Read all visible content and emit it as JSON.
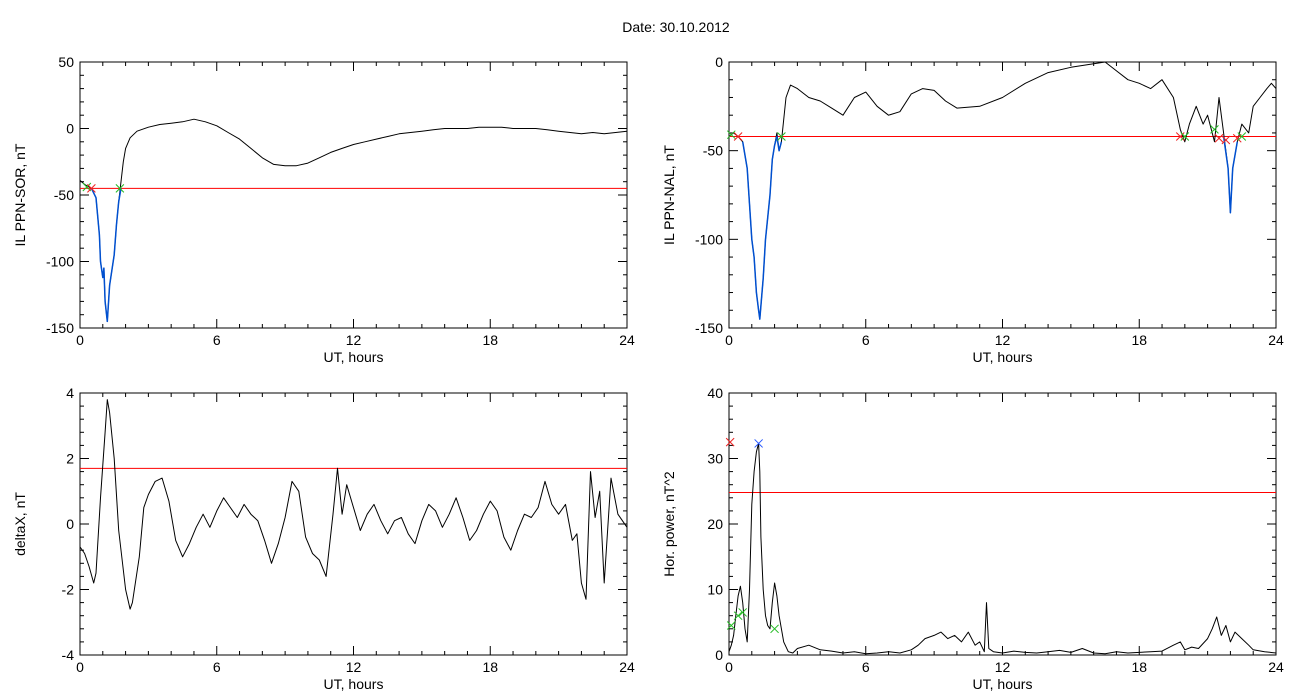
{
  "header": {
    "title": "Date:  30.10.2012"
  },
  "colors": {
    "signal": "#000000",
    "threshold": "#ff0000",
    "event": "#0050d0",
    "marker_start": "#22bb22",
    "marker_end": "#ee2222",
    "marker_peak": "#2255ff"
  },
  "chart_data": [
    {
      "id": "sor",
      "type": "line",
      "title": "",
      "xlabel": "UT, hours",
      "ylabel": "IL PPN-SOR, nT",
      "xlim": [
        0,
        24
      ],
      "ylim": [
        -150,
        50
      ],
      "xticks": [
        0,
        6,
        12,
        18,
        24
      ],
      "yticks": [
        -150,
        -100,
        -50,
        0,
        50
      ],
      "grid": false,
      "threshold": -45,
      "series": [
        {
          "role": "signal",
          "x": [
            0,
            0.2,
            0.5,
            0.7,
            0.85,
            0.9,
            1.0,
            1.05,
            1.1,
            1.2,
            1.3,
            1.5,
            1.6,
            1.7,
            1.8,
            1.9,
            2.0,
            2.2,
            2.5,
            3.0,
            3.5,
            4.0,
            4.5,
            5.0,
            5.5,
            6.0,
            6.5,
            7.0,
            7.5,
            8.0,
            8.5,
            9.0,
            9.5,
            10.0,
            10.5,
            11.0,
            11.5,
            12.0,
            12.5,
            13.0,
            13.5,
            14.0,
            14.5,
            15.0,
            15.5,
            16.0,
            16.5,
            17.0,
            17.5,
            18.0,
            18.5,
            19.0,
            19.5,
            20.0,
            20.5,
            21.0,
            21.5,
            22.0,
            22.5,
            23.0,
            23.5,
            24.0
          ],
          "y": [
            -39,
            -42,
            -45,
            -52,
            -80,
            -100,
            -112,
            -105,
            -130,
            -145,
            -118,
            -95,
            -72,
            -55,
            -40,
            -25,
            -15,
            -7,
            -2,
            1,
            3,
            4,
            5,
            7,
            5,
            2,
            -3,
            -8,
            -15,
            -22,
            -27,
            -28,
            -28,
            -26,
            -22,
            -18,
            -15,
            -12,
            -10,
            -8,
            -6,
            -4,
            -3,
            -2,
            -1,
            0,
            0,
            0,
            1,
            1,
            1,
            0,
            0,
            0,
            -1,
            -2,
            -3,
            -4,
            -3,
            -4,
            -3,
            -2
          ]
        },
        {
          "role": "event",
          "x": [
            0.5,
            0.7,
            0.85,
            0.9,
            1.0,
            1.05,
            1.1,
            1.2,
            1.3,
            1.5,
            1.6,
            1.7,
            1.8
          ],
          "y": [
            -45,
            -52,
            -80,
            -100,
            -112,
            -105,
            -130,
            -145,
            -118,
            -95,
            -72,
            -55,
            -45
          ]
        }
      ],
      "markers": [
        {
          "x": 0.3,
          "y": -44,
          "kind": "start"
        },
        {
          "x": 0.5,
          "y": -45,
          "kind": "end"
        },
        {
          "x": 1.75,
          "y": -45,
          "kind": "start"
        }
      ]
    },
    {
      "id": "nal",
      "type": "line",
      "title": "",
      "xlabel": "UT, hours",
      "ylabel": "IL PPN-NAL, nT",
      "xlim": [
        0,
        24
      ],
      "ylim": [
        -150,
        0
      ],
      "xticks": [
        0,
        6,
        12,
        18,
        24
      ],
      "yticks": [
        -150,
        -100,
        -50,
        0
      ],
      "grid": false,
      "threshold": -42,
      "series": [
        {
          "role": "signal",
          "x": [
            0,
            0.2,
            0.4,
            0.6,
            0.8,
            0.9,
            1.0,
            1.1,
            1.2,
            1.3,
            1.35,
            1.5,
            1.6,
            1.8,
            1.9,
            2.0,
            2.1,
            2.2,
            2.3,
            2.5,
            2.7,
            3.0,
            3.5,
            4.0,
            4.5,
            5.0,
            5.5,
            6.0,
            6.5,
            7.0,
            7.5,
            8.0,
            8.5,
            9.0,
            9.5,
            10.0,
            11.0,
            12.0,
            13.0,
            14.0,
            15.0,
            16.0,
            16.5,
            17.0,
            17.5,
            18.0,
            18.5,
            19.0,
            19.5,
            19.8,
            20.0,
            20.2,
            20.5,
            20.8,
            21.0,
            21.3,
            21.5,
            21.7,
            21.9,
            22.0,
            22.1,
            22.3,
            22.5,
            22.8,
            23.0,
            23.3,
            23.6,
            23.8,
            24.0
          ],
          "y": [
            -42,
            -40,
            -42,
            -45,
            -60,
            -80,
            -100,
            -110,
            -130,
            -140,
            -145,
            -122,
            -100,
            -75,
            -55,
            -47,
            -40,
            -50,
            -45,
            -20,
            -13,
            -15,
            -20,
            -22,
            -26,
            -30,
            -20,
            -17,
            -25,
            -30,
            -28,
            -18,
            -15,
            -16,
            -22,
            -26,
            -25,
            -20,
            -12,
            -6,
            -3,
            -1,
            0,
            -5,
            -10,
            -12,
            -15,
            -10,
            -20,
            -38,
            -45,
            -35,
            -25,
            -35,
            -30,
            -45,
            -20,
            -40,
            -60,
            -85,
            -60,
            -45,
            -35,
            -40,
            -25,
            -20,
            -15,
            -12,
            -15
          ]
        },
        {
          "role": "event",
          "x": [
            0.6,
            0.8,
            0.9,
            1.0,
            1.1,
            1.2,
            1.3,
            1.35,
            1.5,
            1.6,
            1.8,
            1.9,
            2.0,
            2.1,
            2.2,
            2.3
          ],
          "y": [
            -45,
            -60,
            -80,
            -100,
            -110,
            -130,
            -140,
            -145,
            -122,
            -100,
            -75,
            -55,
            -47,
            -42,
            -50,
            -45
          ]
        },
        {
          "role": "event",
          "x": [
            21.7,
            21.9,
            22.0,
            22.1,
            22.3
          ],
          "y": [
            -42,
            -60,
            -85,
            -60,
            -45
          ]
        }
      ],
      "markers": [
        {
          "x": 0.1,
          "y": -41,
          "kind": "start"
        },
        {
          "x": 0.4,
          "y": -42,
          "kind": "end"
        },
        {
          "x": 2.3,
          "y": -42,
          "kind": "start"
        },
        {
          "x": 19.8,
          "y": -42,
          "kind": "end"
        },
        {
          "x": 20.0,
          "y": -42,
          "kind": "start"
        },
        {
          "x": 21.3,
          "y": -38,
          "kind": "start"
        },
        {
          "x": 21.5,
          "y": -43,
          "kind": "end"
        },
        {
          "x": 21.8,
          "y": -44,
          "kind": "end"
        },
        {
          "x": 22.3,
          "y": -43,
          "kind": "end"
        },
        {
          "x": 22.5,
          "y": -42,
          "kind": "start"
        }
      ]
    },
    {
      "id": "deltax",
      "type": "line",
      "title": "",
      "xlabel": "UT, hours",
      "ylabel": "deltaX, nT",
      "xlim": [
        0,
        24
      ],
      "ylim": [
        -4,
        4
      ],
      "xticks": [
        0,
        6,
        12,
        18,
        24
      ],
      "yticks": [
        -4,
        -2,
        0,
        2,
        4
      ],
      "grid": false,
      "threshold": 1.7,
      "series": [
        {
          "role": "signal",
          "x": [
            0,
            0.2,
            0.4,
            0.6,
            0.7,
            0.9,
            1.1,
            1.2,
            1.3,
            1.5,
            1.7,
            2.0,
            2.2,
            2.3,
            2.6,
            2.8,
            3.0,
            3.3,
            3.6,
            3.9,
            4.2,
            4.5,
            4.8,
            5.1,
            5.4,
            5.7,
            6.0,
            6.3,
            6.6,
            6.9,
            7.2,
            7.5,
            7.8,
            8.1,
            8.4,
            8.7,
            9.0,
            9.3,
            9.6,
            9.9,
            10.2,
            10.5,
            10.8,
            11.1,
            11.3,
            11.5,
            11.7,
            12.0,
            12.3,
            12.6,
            12.9,
            13.2,
            13.5,
            13.8,
            14.1,
            14.4,
            14.7,
            15.0,
            15.3,
            15.6,
            15.9,
            16.2,
            16.5,
            16.8,
            17.1,
            17.4,
            17.7,
            18.0,
            18.3,
            18.6,
            18.9,
            19.2,
            19.5,
            19.8,
            20.1,
            20.4,
            20.7,
            21.0,
            21.3,
            21.6,
            21.8,
            22.0,
            22.2,
            22.4,
            22.6,
            22.8,
            23.0,
            23.3,
            23.6,
            24.0
          ],
          "y": [
            -0.7,
            -0.9,
            -1.3,
            -1.8,
            -1.5,
            0.8,
            2.8,
            3.8,
            3.4,
            2.0,
            -0.2,
            -2.0,
            -2.6,
            -2.4,
            -1.0,
            0.5,
            0.9,
            1.3,
            1.4,
            0.7,
            -0.5,
            -1.0,
            -0.6,
            -0.1,
            0.3,
            -0.1,
            0.4,
            0.8,
            0.5,
            0.2,
            0.6,
            0.3,
            0.1,
            -0.5,
            -1.2,
            -0.6,
            0.2,
            1.3,
            1.0,
            -0.4,
            -0.9,
            -1.1,
            -1.6,
            0.3,
            1.7,
            0.3,
            1.2,
            0.5,
            -0.2,
            0.3,
            0.6,
            0.1,
            -0.3,
            0.1,
            0.2,
            -0.3,
            -0.6,
            0.1,
            0.6,
            0.4,
            -0.1,
            0.3,
            0.8,
            0.2,
            -0.5,
            -0.2,
            0.3,
            0.7,
            0.4,
            -0.4,
            -0.8,
            -0.2,
            0.3,
            0.2,
            0.5,
            1.3,
            0.6,
            0.3,
            0.6,
            -0.5,
            -0.3,
            -1.8,
            -2.3,
            1.6,
            0.2,
            1.0,
            -1.8,
            1.4,
            0.3,
            -0.1
          ]
        }
      ],
      "markers": []
    },
    {
      "id": "power",
      "type": "line",
      "title": "",
      "xlabel": "UT, hours",
      "ylabel": "Hor. power, nT^2",
      "xlim": [
        0,
        24
      ],
      "ylim": [
        0,
        40
      ],
      "xticks": [
        0,
        6,
        12,
        18,
        24
      ],
      "yticks": [
        0,
        10,
        20,
        30,
        40
      ],
      "grid": false,
      "threshold": 24.8,
      "series": [
        {
          "role": "signal",
          "x": [
            0,
            0.1,
            0.2,
            0.3,
            0.4,
            0.5,
            0.6,
            0.7,
            0.8,
            0.9,
            1.0,
            1.1,
            1.2,
            1.3,
            1.35,
            1.4,
            1.5,
            1.6,
            1.7,
            1.8,
            1.9,
            2.0,
            2.1,
            2.2,
            2.3,
            2.4,
            2.6,
            2.8,
            3.0,
            3.5,
            4.0,
            4.5,
            5.0,
            5.5,
            6.0,
            6.5,
            7.0,
            7.5,
            8.0,
            8.3,
            8.6,
            9.0,
            9.3,
            9.6,
            9.9,
            10.2,
            10.5,
            10.8,
            11.0,
            11.2,
            11.3,
            11.4,
            11.6,
            12.0,
            12.5,
            13.0,
            13.5,
            14.0,
            14.5,
            15.0,
            15.5,
            16.0,
            16.5,
            17.0,
            17.5,
            18.0,
            18.5,
            19.0,
            19.5,
            19.8,
            20.0,
            20.3,
            20.6,
            21.0,
            21.2,
            21.4,
            21.6,
            21.8,
            22.0,
            22.2,
            22.5,
            22.8,
            23.0,
            23.5,
            24.0
          ],
          "y": [
            0.5,
            1.5,
            3.0,
            6.0,
            9.0,
            10.5,
            8.0,
            4.0,
            2.0,
            10.0,
            23.0,
            28.0,
            31.0,
            32.3,
            28.0,
            18.0,
            10.0,
            6.0,
            4.5,
            4.0,
            8.0,
            11.0,
            9.0,
            6.0,
            4.0,
            2.0,
            0.5,
            0.3,
            1.0,
            1.5,
            0.8,
            0.6,
            0.3,
            0.5,
            0.2,
            0.3,
            0.5,
            0.3,
            0.8,
            1.5,
            2.5,
            3.0,
            3.5,
            2.5,
            3.0,
            2.0,
            3.5,
            1.5,
            2.0,
            0.5,
            8.0,
            1.0,
            0.5,
            0.3,
            0.6,
            0.4,
            0.3,
            0.5,
            0.7,
            0.4,
            1.0,
            0.3,
            0.2,
            0.5,
            0.3,
            0.4,
            0.5,
            0.6,
            1.5,
            2.0,
            0.8,
            1.2,
            1.0,
            2.5,
            4.0,
            5.8,
            3.0,
            4.5,
            2.0,
            3.5,
            2.5,
            1.5,
            0.8,
            0.5,
            0.3
          ]
        }
      ],
      "markers": [
        {
          "x": 0.05,
          "y": 32.5,
          "kind": "end"
        },
        {
          "x": 0.1,
          "y": 4.5,
          "kind": "start"
        },
        {
          "x": 0.4,
          "y": 6.0,
          "kind": "start"
        },
        {
          "x": 0.6,
          "y": 6.5,
          "kind": "start"
        },
        {
          "x": 1.3,
          "y": 32.3,
          "kind": "peak"
        },
        {
          "x": 2.0,
          "y": 4.0,
          "kind": "start"
        }
      ]
    }
  ]
}
